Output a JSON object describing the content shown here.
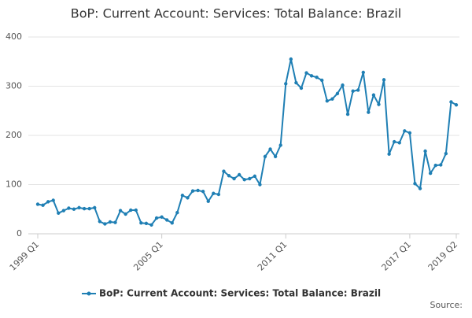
{
  "chart_data": {
    "type": "line",
    "title": "BoP: Current Account: Services: Total Balance: Brazil",
    "source": "Source:",
    "categories": [
      "1999 Q1",
      null,
      null,
      null,
      null,
      null,
      null,
      null,
      null,
      null,
      null,
      null,
      null,
      null,
      null,
      null,
      null,
      null,
      null,
      null,
      null,
      null,
      null,
      null,
      "2005 Q1",
      null,
      null,
      null,
      null,
      null,
      null,
      null,
      null,
      null,
      null,
      null,
      null,
      null,
      null,
      null,
      null,
      null,
      null,
      null,
      null,
      null,
      null,
      null,
      "2011 Q1",
      null,
      null,
      null,
      null,
      null,
      null,
      null,
      null,
      null,
      null,
      null,
      null,
      null,
      null,
      null,
      null,
      null,
      null,
      null,
      null,
      null,
      null,
      null,
      "2017 Q1",
      null,
      null,
      null,
      null,
      null,
      null,
      null,
      null,
      "2019 Q2"
    ],
    "series": [
      {
        "name": "BoP: Current Account: Services: Total Balance: Brazil",
        "color": "#1f7fb4",
        "values": [
          60,
          58,
          65,
          68,
          42,
          47,
          52,
          50,
          53,
          51,
          51,
          53,
          25,
          20,
          24,
          23,
          47,
          40,
          48,
          48,
          22,
          21,
          18,
          32,
          34,
          28,
          22,
          43,
          78,
          73,
          87,
          88,
          86,
          66,
          82,
          80,
          127,
          118,
          112,
          120,
          110,
          112,
          117,
          100,
          157,
          172,
          157,
          180,
          305,
          355,
          307,
          296,
          327,
          321,
          318,
          312,
          270,
          274,
          285,
          302,
          243,
          290,
          292,
          328,
          247,
          282,
          263,
          313,
          162,
          187,
          185,
          209,
          205,
          102,
          92,
          168,
          123,
          139,
          140,
          163,
          268,
          262
        ]
      }
    ],
    "ylim": [
      0,
      400
    ],
    "yticks": [
      0,
      100,
      200,
      300,
      400
    ],
    "grid": true,
    "legend": "bottom"
  }
}
